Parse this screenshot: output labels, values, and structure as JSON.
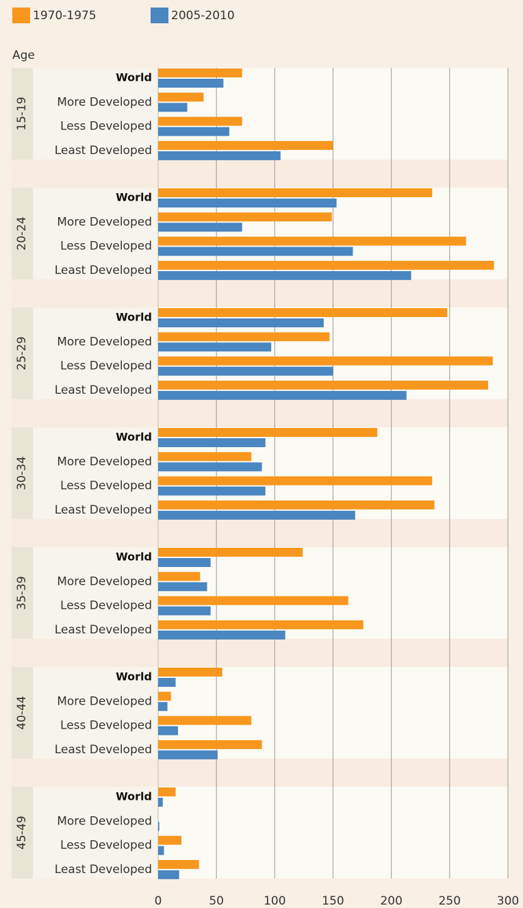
{
  "chart_data": {
    "type": "bar",
    "orientation": "horizontal",
    "y_axis_label": "Age",
    "groups": [
      "15-19",
      "20-24",
      "25-29",
      "30-34",
      "35-39",
      "40-44",
      "45-49"
    ],
    "categories": [
      "World",
      "More Developed",
      "Less Developed",
      "Least Developed"
    ],
    "series": [
      {
        "name": "1970-1975",
        "color": "#f7971e",
        "values": [
          [
            72,
            39,
            72,
            150
          ],
          [
            235,
            149,
            264,
            288
          ],
          [
            248,
            147,
            287,
            283
          ],
          [
            188,
            80,
            235,
            237
          ],
          [
            124,
            36,
            163,
            176
          ],
          [
            55,
            11,
            80,
            89
          ],
          [
            15,
            0,
            20,
            35
          ]
        ]
      },
      {
        "name": "2005-2010",
        "color": "#4a86c0",
        "values": [
          [
            56,
            25,
            61,
            105
          ],
          [
            153,
            72,
            167,
            217
          ],
          [
            142,
            97,
            150,
            213
          ],
          [
            92,
            89,
            92,
            169
          ],
          [
            45,
            42,
            45,
            109
          ],
          [
            15,
            8,
            17,
            51
          ],
          [
            4,
            1,
            5,
            18
          ]
        ]
      }
    ],
    "xlim": [
      0,
      300
    ],
    "xticks": [
      0,
      50,
      100,
      150,
      200,
      250,
      300
    ],
    "grid": true
  }
}
